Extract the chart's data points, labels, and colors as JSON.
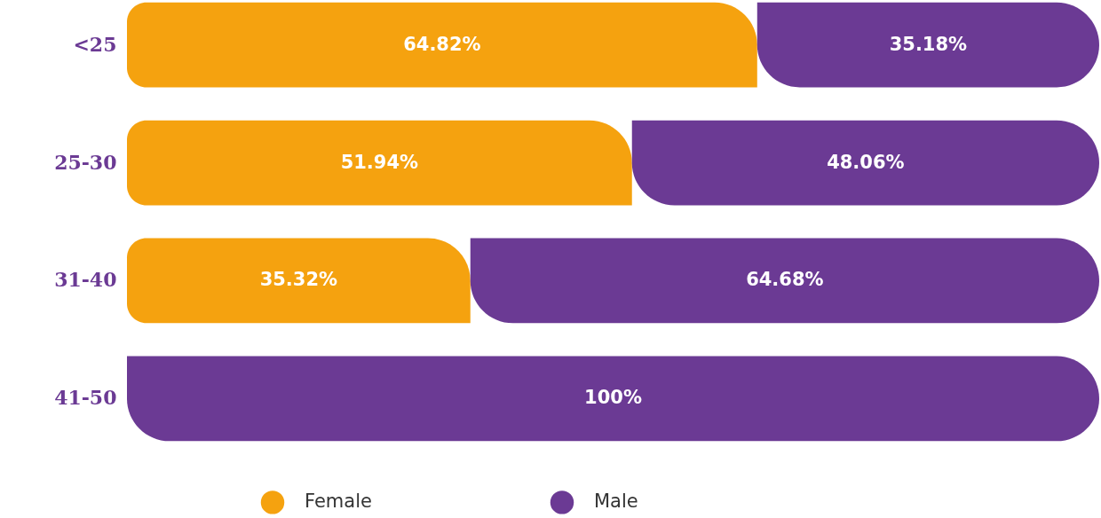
{
  "chart_data": {
    "type": "bar",
    "orientation": "horizontal",
    "stacked": true,
    "tick_labels": "y",
    "legend": "bottom",
    "categories": [
      "<25",
      "25-30",
      "31-40",
      "41-50"
    ],
    "series": [
      {
        "name": "Female",
        "color": "#f5a20f",
        "values": [
          64.82,
          51.94,
          35.32,
          null
        ],
        "value_labels": [
          "64.82%",
          "51.94%",
          "35.32%",
          null
        ]
      },
      {
        "name": "Male",
        "color": "#6b3a94",
        "values": [
          35.18,
          48.06,
          64.68,
          100
        ],
        "value_labels": [
          "35.18%",
          "48.06%",
          "64.68%",
          "100%"
        ]
      }
    ]
  }
}
